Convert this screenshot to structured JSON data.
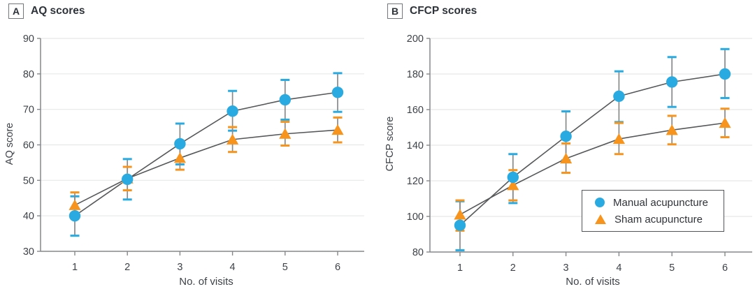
{
  "figure": {
    "panels": [
      {
        "tag": "A",
        "title": "AQ scores"
      },
      {
        "tag": "B",
        "title": "CFCP scores"
      }
    ]
  },
  "legend": {
    "position": "inside panel B, lower right",
    "items": [
      {
        "label": "Manual acupuncture",
        "marker": "circle",
        "color": "#29abe2"
      },
      {
        "label": "Sham acupuncture",
        "marker": "triangle",
        "color": "#f7941e"
      }
    ]
  },
  "colors": {
    "manual_blue": "#29abe2",
    "sham_orange": "#f7941e",
    "series_line": "#57585a",
    "error_stem": "#87898b",
    "gridline": "#e7e8e8",
    "axis": "#85878a",
    "text": "#3d4247"
  },
  "chart_data": [
    {
      "type": "line",
      "panel": "A",
      "title": "AQ scores",
      "xlabel": "No. of visits",
      "ylabel": "AQ score",
      "x": [
        1,
        2,
        3,
        4,
        5,
        6
      ],
      "ylim": [
        30,
        90
      ],
      "yticks": [
        30,
        40,
        50,
        60,
        70,
        80,
        90
      ],
      "grid": true,
      "legend": false,
      "series": [
        {
          "name": "Manual acupuncture",
          "marker": "circle",
          "color": "#29abe2",
          "values": [
            40.0,
            50.3,
            60.3,
            69.5,
            72.7,
            74.8
          ],
          "err_low": [
            34.4,
            44.6,
            54.5,
            64.0,
            67.1,
            69.3
          ],
          "err_high": [
            45.5,
            56.0,
            66.0,
            75.2,
            78.3,
            80.2
          ]
        },
        {
          "name": "Sham acupuncture",
          "marker": "triangle",
          "color": "#f7941e",
          "values": [
            43.0,
            50.5,
            56.3,
            61.5,
            63.1,
            64.2
          ],
          "err_low": [
            39.4,
            47.2,
            53.0,
            58.0,
            59.8,
            60.7
          ],
          "err_high": [
            46.6,
            53.8,
            59.6,
            65.0,
            66.5,
            67.7
          ]
        }
      ]
    },
    {
      "type": "line",
      "panel": "B",
      "title": "CFCP scores",
      "xlabel": "No. of visits",
      "ylabel": "CFCP score",
      "x": [
        1,
        2,
        3,
        4,
        5,
        6
      ],
      "ylim": [
        80,
        200
      ],
      "yticks": [
        80,
        100,
        120,
        140,
        160,
        180,
        200
      ],
      "grid": true,
      "legend": true,
      "series": [
        {
          "name": "Manual acupuncture",
          "marker": "circle",
          "color": "#29abe2",
          "values": [
            95,
            122,
            145,
            167.5,
            175.5,
            180
          ],
          "err_low": [
            81,
            107.5,
            131.5,
            153,
            161.5,
            166.5
          ],
          "err_high": [
            108.5,
            135,
            159,
            181.5,
            189.5,
            194
          ]
        },
        {
          "name": "Sham acupuncture",
          "marker": "triangle",
          "color": "#f7941e",
          "values": [
            101,
            117.5,
            132.5,
            143.5,
            148.5,
            152.5
          ],
          "err_low": [
            92,
            109,
            124.5,
            135,
            140.5,
            144.5
          ],
          "err_high": [
            109,
            126,
            141,
            152.5,
            156.5,
            160.5
          ]
        }
      ]
    }
  ]
}
